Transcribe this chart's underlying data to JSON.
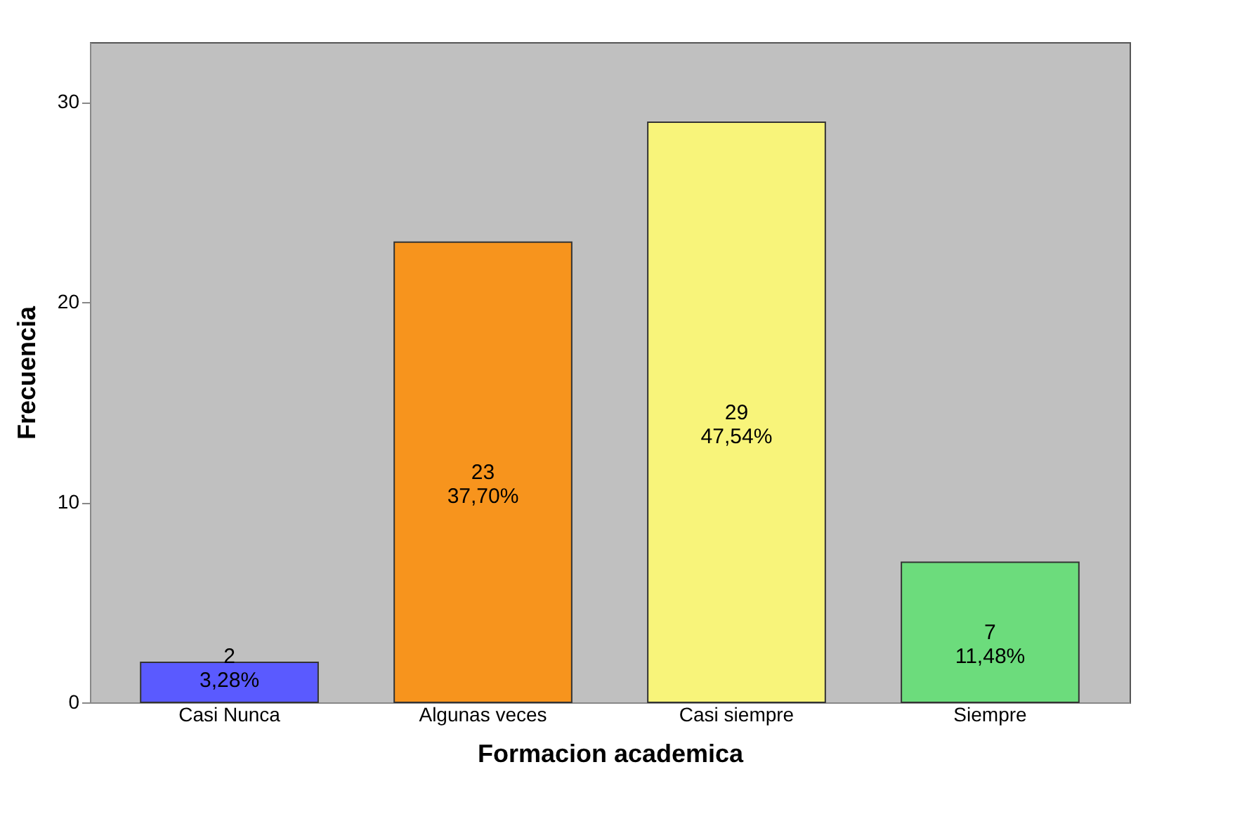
{
  "chart_data": {
    "type": "bar",
    "xlabel": "Formacion academica",
    "ylabel": "Frecuencia",
    "categories": [
      "Casi Nunca",
      "Algunas veces",
      "Casi siempre",
      "Siempre"
    ],
    "values": [
      2,
      23,
      29,
      7
    ],
    "colors": [
      "#5a5aff",
      "#f7941d",
      "#f8f47a",
      "#6cdc7c"
    ],
    "value_labels": [
      "2\n3,28%",
      "23\n37,70%",
      "29\n47,54%",
      "7\n11,48%"
    ],
    "ylim": [
      0,
      33
    ],
    "yticks": [
      0,
      10,
      20,
      30
    ]
  }
}
